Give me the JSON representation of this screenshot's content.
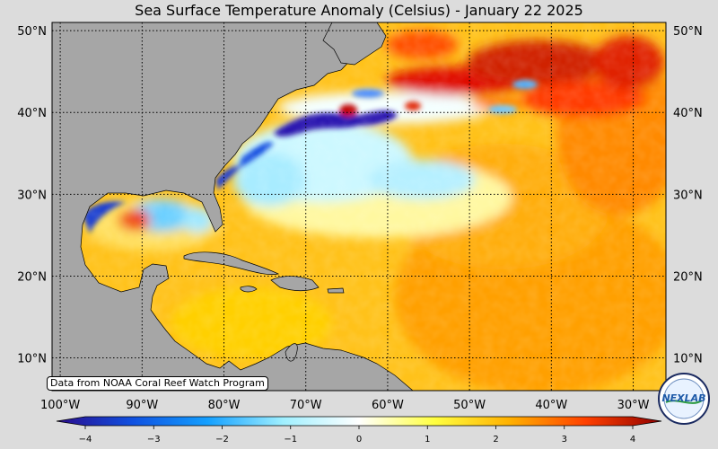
{
  "title": "Sea Surface Temperature Anomaly (Celsius) - January 22 2025",
  "credit": "Data from NOAA Coral Reef Watch Program",
  "logo_text": "NEXLAB",
  "map": {
    "lon_range": [
      -101,
      -26
    ],
    "lat_range": [
      6,
      51
    ],
    "lat_ticks": [
      {
        "value": 50,
        "label": "50°N"
      },
      {
        "value": 40,
        "label": "40°N"
      },
      {
        "value": 30,
        "label": "30°N"
      },
      {
        "value": 20,
        "label": "20°N"
      },
      {
        "value": 10,
        "label": "10°N"
      }
    ],
    "lon_ticks": [
      {
        "value": -100,
        "label": "100°W"
      },
      {
        "value": -90,
        "label": "90°W"
      },
      {
        "value": -80,
        "label": "80°W"
      },
      {
        "value": -70,
        "label": "70°W"
      },
      {
        "value": -60,
        "label": "60°W"
      },
      {
        "value": -50,
        "label": "50°W"
      },
      {
        "value": -40,
        "label": "40°W"
      },
      {
        "value": -30,
        "label": "30°W"
      }
    ],
    "gridlines": true,
    "land_color": "#a6a6a6"
  },
  "colorbar": {
    "range": [
      -4,
      4
    ],
    "ticks": [
      {
        "value": -4,
        "label": "−4"
      },
      {
        "value": -3,
        "label": "−3"
      },
      {
        "value": -2,
        "label": "−2"
      },
      {
        "value": -1,
        "label": "−1"
      },
      {
        "value": 0,
        "label": "0"
      },
      {
        "value": 1,
        "label": "1"
      },
      {
        "value": 2,
        "label": "2"
      },
      {
        "value": 3,
        "label": "3"
      },
      {
        "value": 4,
        "label": "4"
      }
    ],
    "colors": [
      "#2a0a8c",
      "#1050e0",
      "#14a0ff",
      "#a0f0ff",
      "#ffffff",
      "#ffff40",
      "#ffb000",
      "#ff4000",
      "#900000"
    ]
  }
}
